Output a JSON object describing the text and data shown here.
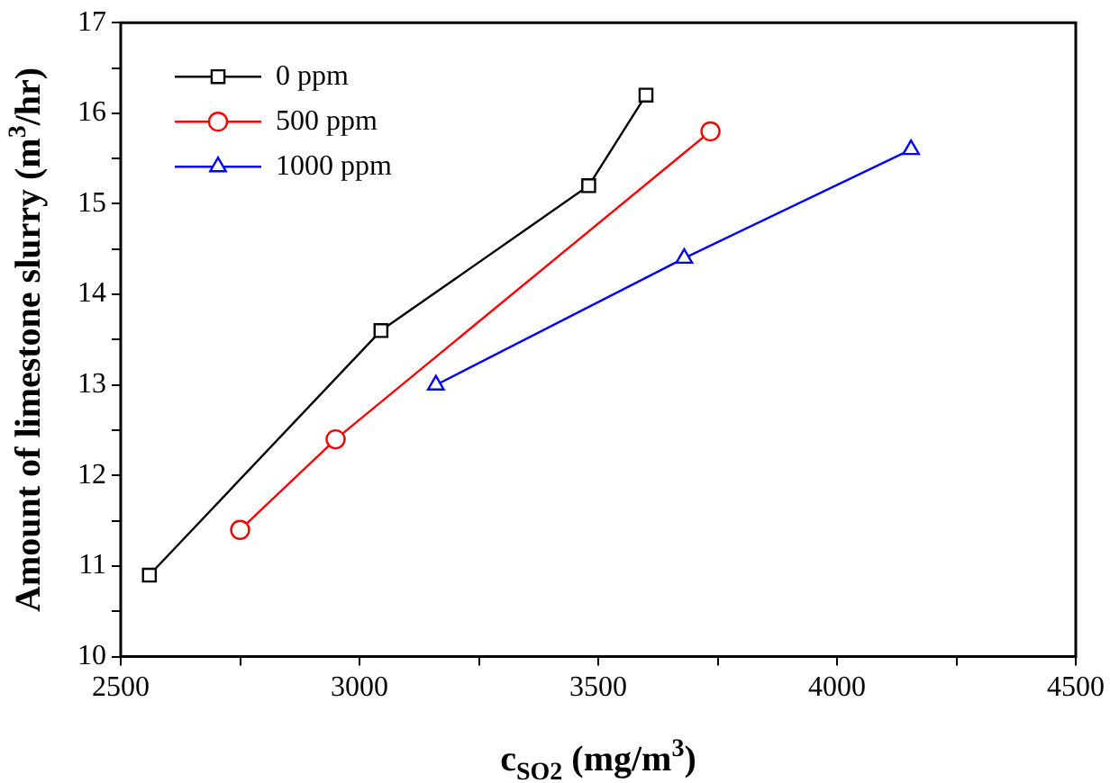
{
  "chart_data": {
    "type": "line",
    "xlabel": "c$_{SO2}$ (mg/m$^{3}$)",
    "ylabel": "Amount of limestone slurry (m$^{3}$/hr)",
    "xlim": [
      2500,
      4500
    ],
    "xticks": [
      2500,
      {
        "value": 2750,
        "label": null
      },
      3000,
      {
        "value": 3250,
        "label": null
      },
      3500,
      {
        "value": 3750,
        "label": null
      },
      4000,
      {
        "value": 4250,
        "label": null
      },
      4500
    ],
    "ylim": [
      10,
      17
    ],
    "yticks": [
      10,
      {
        "value": 10.5,
        "label": null
      },
      11,
      {
        "value": 11.5,
        "label": null
      },
      12,
      {
        "value": 12.5,
        "label": null
      },
      13,
      {
        "value": 13.5,
        "label": null
      },
      14,
      {
        "value": 14.5,
        "label": null
      },
      15,
      {
        "value": 15.5,
        "label": null
      },
      16,
      {
        "value": 16.5,
        "label": null
      },
      17
    ],
    "grid": false,
    "legend": "top left",
    "series": [
      {
        "name": "0 ppm",
        "color": "#000000",
        "marker": "square",
        "x": [
          2560,
          3045,
          3480,
          3600
        ],
        "values": [
          10.9,
          13.6,
          15.2,
          16.2
        ]
      },
      {
        "name": "500 ppm",
        "color": "#ff0000",
        "marker": "circle",
        "x": [
          2750,
          2950,
          3735
        ],
        "values": [
          11.4,
          12.4,
          15.8
        ]
      },
      {
        "name": "1000 ppm",
        "color": "#0000ff",
        "marker": "triangle",
        "x": [
          3160,
          3680,
          4155
        ],
        "values": [
          13,
          14.4,
          15.6
        ]
      }
    ]
  }
}
